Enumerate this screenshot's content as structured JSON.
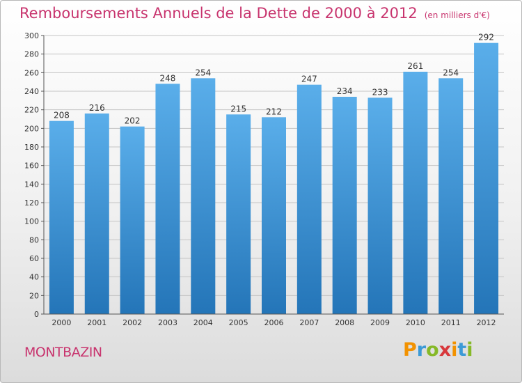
{
  "title": "Remboursements Annuels de la Dette de 2000 à 2012",
  "subtitle": "(en milliers d'€)",
  "commune": "MONTBAZIN",
  "logo": {
    "letters": [
      "P",
      "r",
      "o",
      "x",
      "i",
      "t",
      "i"
    ],
    "colors": [
      "#f29200",
      "#3c9ad6",
      "#86b928",
      "#d8383c",
      "#f29200",
      "#3c9ad6",
      "#86b928"
    ]
  },
  "colors": {
    "bar_top": "#5aaeea",
    "bar_bottom": "#2475b8",
    "accent": "#c8346e"
  },
  "chart_data": {
    "type": "bar",
    "categories": [
      "2000",
      "2001",
      "2002",
      "2003",
      "2004",
      "2005",
      "2006",
      "2007",
      "2008",
      "2009",
      "2010",
      "2011",
      "2012"
    ],
    "values": [
      208,
      216,
      202,
      248,
      254,
      215,
      212,
      247,
      234,
      233,
      261,
      254,
      292
    ],
    "ylim": [
      0,
      300
    ],
    "yticks": [
      "0",
      "20",
      "40",
      "60",
      "80",
      "100",
      "120",
      "140",
      "160",
      "180",
      "200",
      "220",
      "240",
      "260",
      "280",
      "300"
    ],
    "grid": true,
    "legend": "none"
  }
}
